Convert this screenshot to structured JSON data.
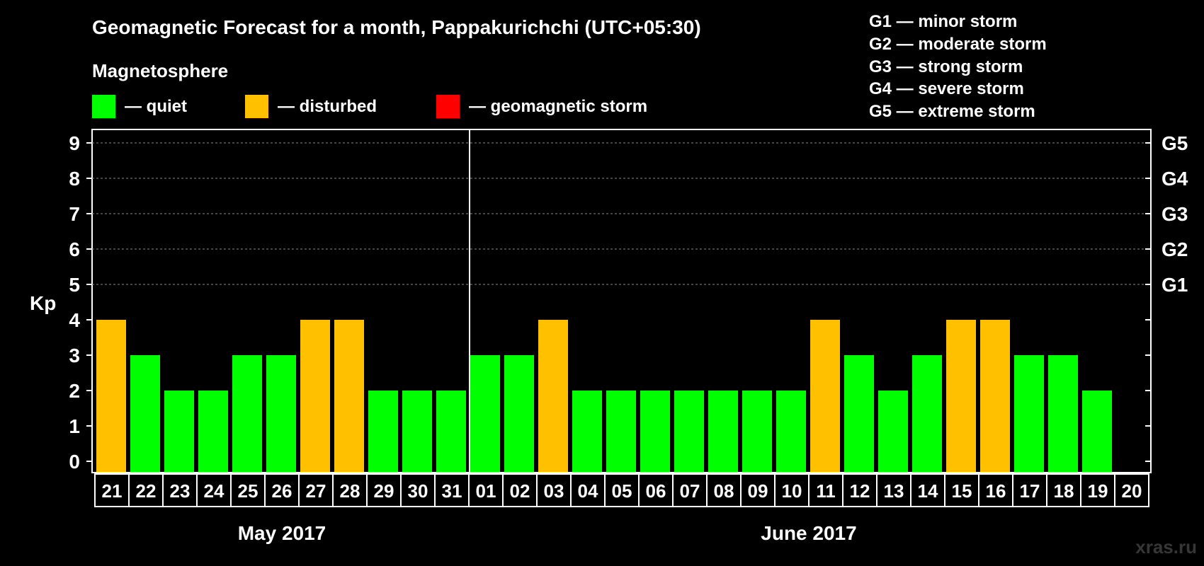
{
  "chart_data": {
    "type": "bar",
    "title": "Geomagnetic Forecast for a month, Pappakurichchi (UTC+05:30)",
    "legend_heading": "Magnetosphere",
    "legend": [
      {
        "label": "— quiet",
        "color": "#00ff00"
      },
      {
        "label": "— disturbed",
        "color": "#ffc000"
      },
      {
        "label": "— geomagnetic storm",
        "color": "#ff0000"
      }
    ],
    "storm_scale": [
      "G1 — minor storm",
      "G2 — moderate storm",
      "G3 — strong storm",
      "G4 — severe storm",
      "G5 — extreme storm"
    ],
    "ylabel": "Kp",
    "ylim": [
      0,
      9
    ],
    "yticks": [
      "0",
      "1",
      "2",
      "3",
      "4",
      "5",
      "6",
      "7",
      "8",
      "9"
    ],
    "right_labels": [
      {
        "kp": 5,
        "label": "G1"
      },
      {
        "kp": 6,
        "label": "G2"
      },
      {
        "kp": 7,
        "label": "G3"
      },
      {
        "kp": 8,
        "label": "G4"
      },
      {
        "kp": 9,
        "label": "G5"
      }
    ],
    "grid": true,
    "categories": [
      "21",
      "22",
      "23",
      "24",
      "25",
      "26",
      "27",
      "28",
      "29",
      "30",
      "31",
      "01",
      "02",
      "03",
      "04",
      "05",
      "06",
      "07",
      "08",
      "09",
      "10",
      "11",
      "12",
      "13",
      "14",
      "15",
      "16",
      "17",
      "18",
      "19",
      "20"
    ],
    "values": [
      4,
      3,
      2,
      2,
      3,
      3,
      4,
      4,
      2,
      2,
      2,
      3,
      3,
      4,
      2,
      2,
      2,
      2,
      2,
      2,
      2,
      4,
      3,
      2,
      3,
      4,
      4,
      3,
      3,
      2,
      null
    ],
    "colors": {
      "quiet": "#00ff00",
      "disturbed": "#ffc000",
      "storm": "#ff0000"
    },
    "months": [
      {
        "label": "May 2017",
        "start": 0,
        "end": 10
      },
      {
        "label": "June 2017",
        "start": 11,
        "end": 30
      }
    ]
  },
  "watermark": "xras.ru"
}
